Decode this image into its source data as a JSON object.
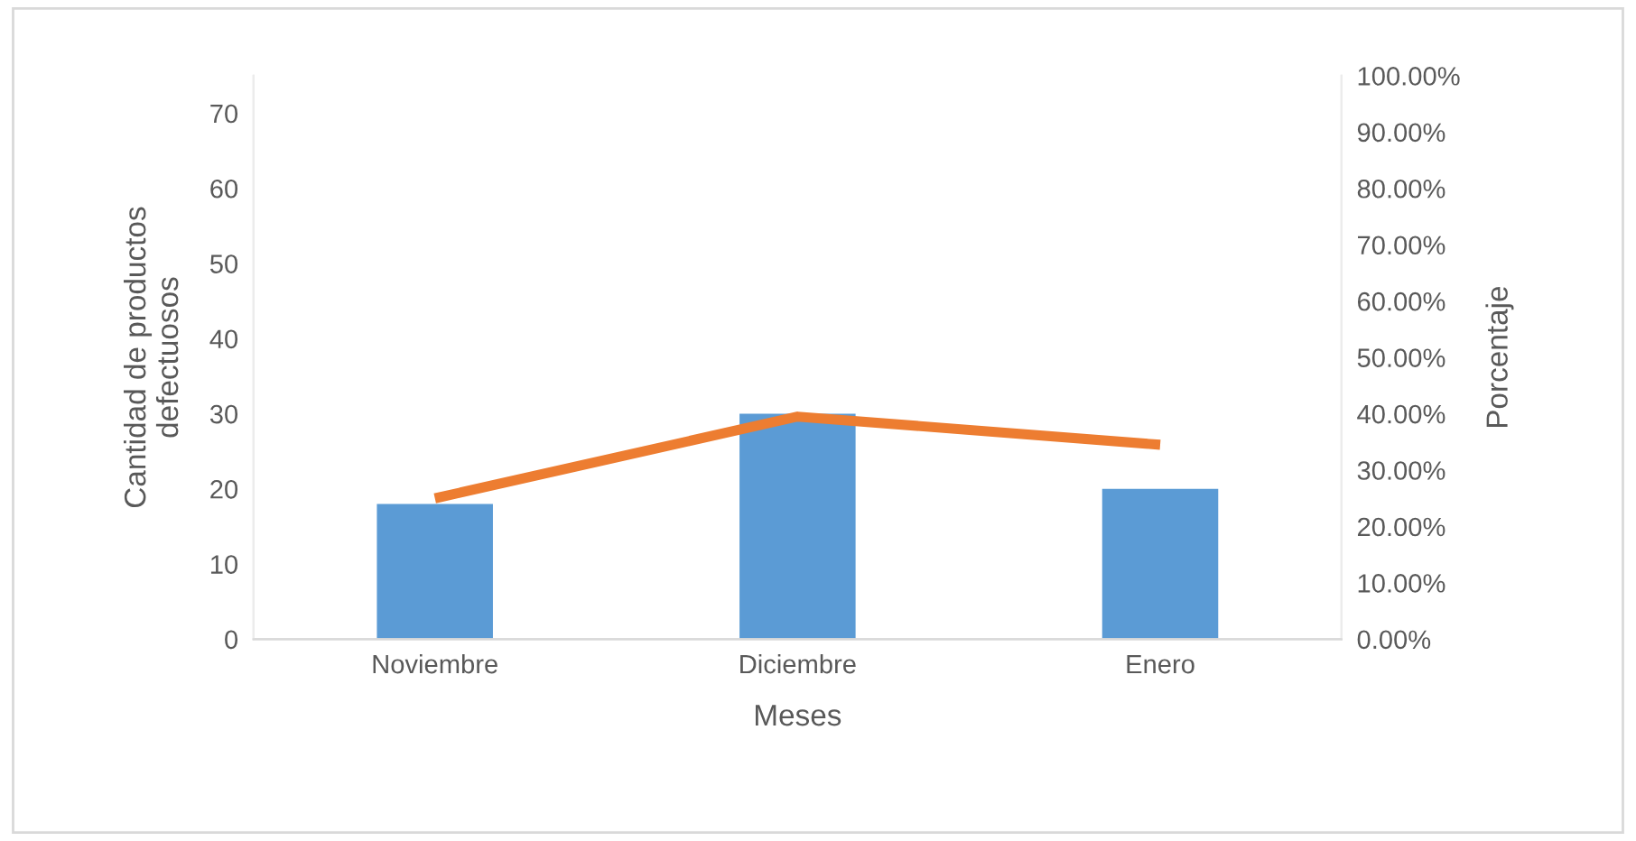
{
  "chart_data": {
    "type": "bar",
    "xlabel": "Meses",
    "ylabel": "Cantidad de productos\ndefectuosos",
    "y2label": "Porcentaje",
    "categories": [
      "Noviembre",
      "Diciembre",
      "Enero"
    ],
    "series": [
      {
        "color": "#5b9bd5",
        "values": [
          18,
          30,
          20
        ]
      },
      {
        "type": "line",
        "axis": "y2",
        "color": "#ed7d31",
        "values": [
          25,
          39.5,
          34.5
        ]
      }
    ],
    "ylim": [
      0,
      75
    ],
    "yticks": [
      0,
      10,
      20,
      30,
      40,
      50,
      60,
      70
    ],
    "y2lim": [
      0,
      100
    ],
    "y2ticks": [
      {
        "value": 0,
        "label": "0.00%"
      },
      {
        "value": 10,
        "label": "10.00%"
      },
      {
        "value": 20,
        "label": "20.00%"
      },
      {
        "value": 30,
        "label": "30.00%"
      },
      {
        "value": 40,
        "label": "40.00%"
      },
      {
        "value": 50,
        "label": "50.00%"
      },
      {
        "value": 60,
        "label": "60.00%"
      },
      {
        "value": 70,
        "label": "70.00%"
      },
      {
        "value": 80,
        "label": "80.00%"
      },
      {
        "value": 90,
        "label": "90.00%"
      },
      {
        "value": 100,
        "label": "100.00%"
      }
    ],
    "grid": false,
    "legend": false,
    "marker": "none",
    "line_style": "solid"
  }
}
